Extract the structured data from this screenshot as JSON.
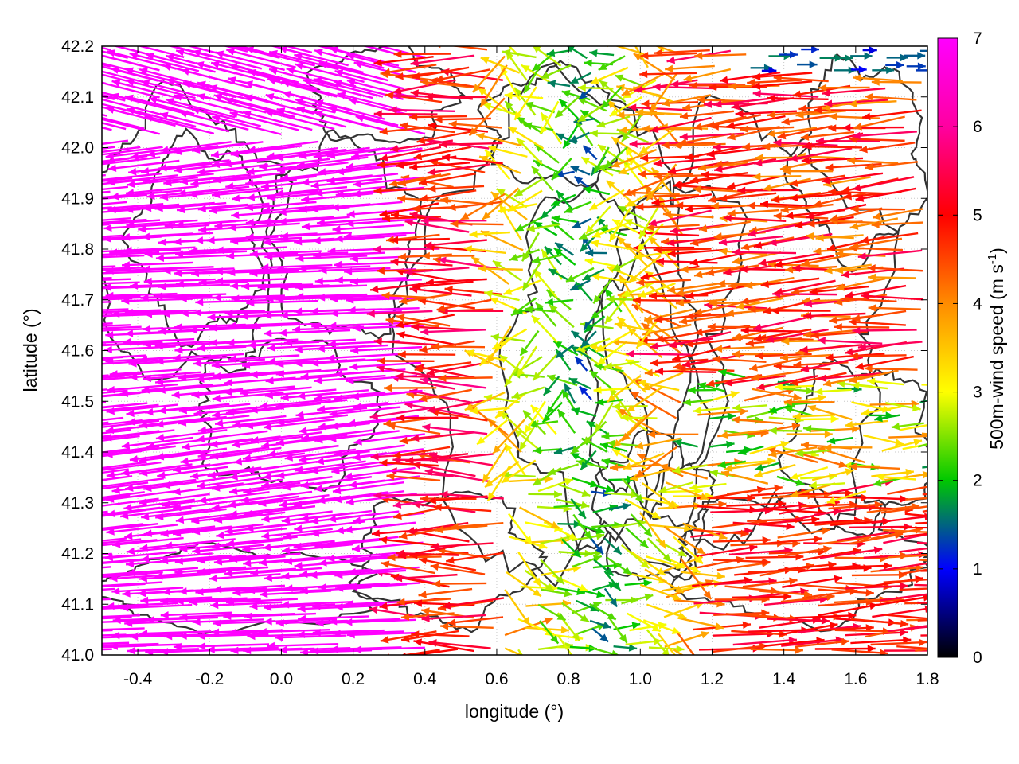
{
  "chart_data": {
    "type": "vector-field",
    "xlabel": "longitude (°)",
    "ylabel": "latitude (°)",
    "xlim": [
      -0.5,
      1.8
    ],
    "ylim": [
      41.0,
      42.2
    ],
    "x_ticks": [
      "-0.4",
      "-0.2",
      "0.0",
      "0.2",
      "0.4",
      "0.6",
      "0.8",
      "1.0",
      "1.2",
      "1.4",
      "1.6",
      "1.8"
    ],
    "y_ticks": [
      "41.0",
      "41.1",
      "41.2",
      "41.3",
      "41.4",
      "41.5",
      "41.6",
      "41.7",
      "41.8",
      "41.9",
      "42.0",
      "42.1",
      "42.2"
    ],
    "colorbar": {
      "label_main": "500m-wind speed (m s",
      "label_sup": "-1",
      "label_end": ")",
      "range": [
        0,
        7
      ],
      "ticks": [
        "0",
        "1",
        "2",
        "3",
        "4",
        "5",
        "6",
        "7"
      ],
      "colormap": [
        "#000000",
        "#0000ff",
        "#00c800",
        "#ffff00",
        "#ff8c00",
        "#ff0000",
        "#ff00ff"
      ]
    },
    "grid": "dotted",
    "contours": "terrain elevation (dark gray lines)",
    "wind_regions": [
      {
        "region": "west, lon -0.5 to 0.45",
        "direction": "westward (easterly flow)",
        "speed": 7
      },
      {
        "region": "central valley, lon 0.6 to 1.1",
        "direction": "variable",
        "speed": 2
      },
      {
        "region": "east, lon 1.2 to 1.8, lat 41.0-41.3",
        "direction": "eastward",
        "speed": 5.5
      },
      {
        "region": "east, lon 1.2 to 1.8, lat 41.6-42.0",
        "direction": "westward",
        "speed": 5.5
      },
      {
        "region": "north-east, lon 1.3 to 1.7, lat 42.15-42.2",
        "direction": "eastward",
        "speed": 1
      }
    ]
  }
}
